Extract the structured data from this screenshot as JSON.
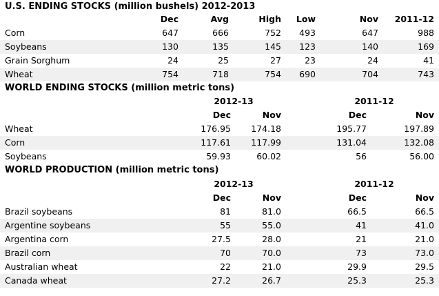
{
  "us": {
    "title": "U.S. ENDING STOCKS (million bushels) 2012-2013",
    "headers": [
      "Dec",
      "Avg",
      "High",
      "Low",
      "Nov",
      "2011-12"
    ],
    "rows": [
      {
        "label": "Corn",
        "values": [
          "647",
          "666",
          "752",
          "493",
          "647",
          "988"
        ]
      },
      {
        "label": "Soybeans",
        "values": [
          "130",
          "135",
          "145",
          "123",
          "140",
          "169"
        ]
      },
      {
        "label": "Grain Sorghum",
        "values": [
          "24",
          "25",
          "27",
          "23",
          "24",
          "41"
        ]
      },
      {
        "label": "Wheat",
        "values": [
          "754",
          "718",
          "754",
          "690",
          "704",
          "743"
        ]
      }
    ]
  },
  "world_stocks": {
    "title": "WORLD ENDING STOCKS (million metric tons)",
    "group1": "2012-13",
    "group2": "2011-12",
    "headers": [
      "Dec",
      "Nov",
      "Dec",
      "Nov"
    ],
    "rows": [
      {
        "label": "Wheat",
        "values": [
          "176.95",
          "174.18",
          "195.77",
          "197.89"
        ]
      },
      {
        "label": "Corn",
        "values": [
          "117.61",
          "117.99",
          "131.04",
          "132.08"
        ]
      },
      {
        "label": "Soybeans",
        "values": [
          "59.93",
          "60.02",
          "56",
          "56.00"
        ]
      }
    ]
  },
  "world_prod": {
    "title": "WORLD PRODUCTION (million metric tons)",
    "group1": "2012-13",
    "group2": "2011-12",
    "headers": [
      "Dec",
      "Nov",
      "Dec",
      "Nov"
    ],
    "rows": [
      {
        "label": "Brazil soybeans",
        "values": [
          "81",
          "81.0",
          "66.5",
          "66.5"
        ]
      },
      {
        "label": "Argentine soybeans",
        "values": [
          "55",
          "55.0",
          "41",
          "41.0"
        ]
      },
      {
        "label": "Argentina corn",
        "values": [
          "27.5",
          "28.0",
          "21",
          "21.0"
        ]
      },
      {
        "label": "Brazil corn",
        "values": [
          "70",
          "70.0",
          "73",
          "73.0"
        ]
      },
      {
        "label": "Australian wheat",
        "values": [
          "22",
          "21.0",
          "29.9",
          "29.5"
        ]
      },
      {
        "label": "Canada wheat",
        "values": [
          "27.2",
          "26.7",
          "25.3",
          "25.3"
        ]
      }
    ]
  }
}
